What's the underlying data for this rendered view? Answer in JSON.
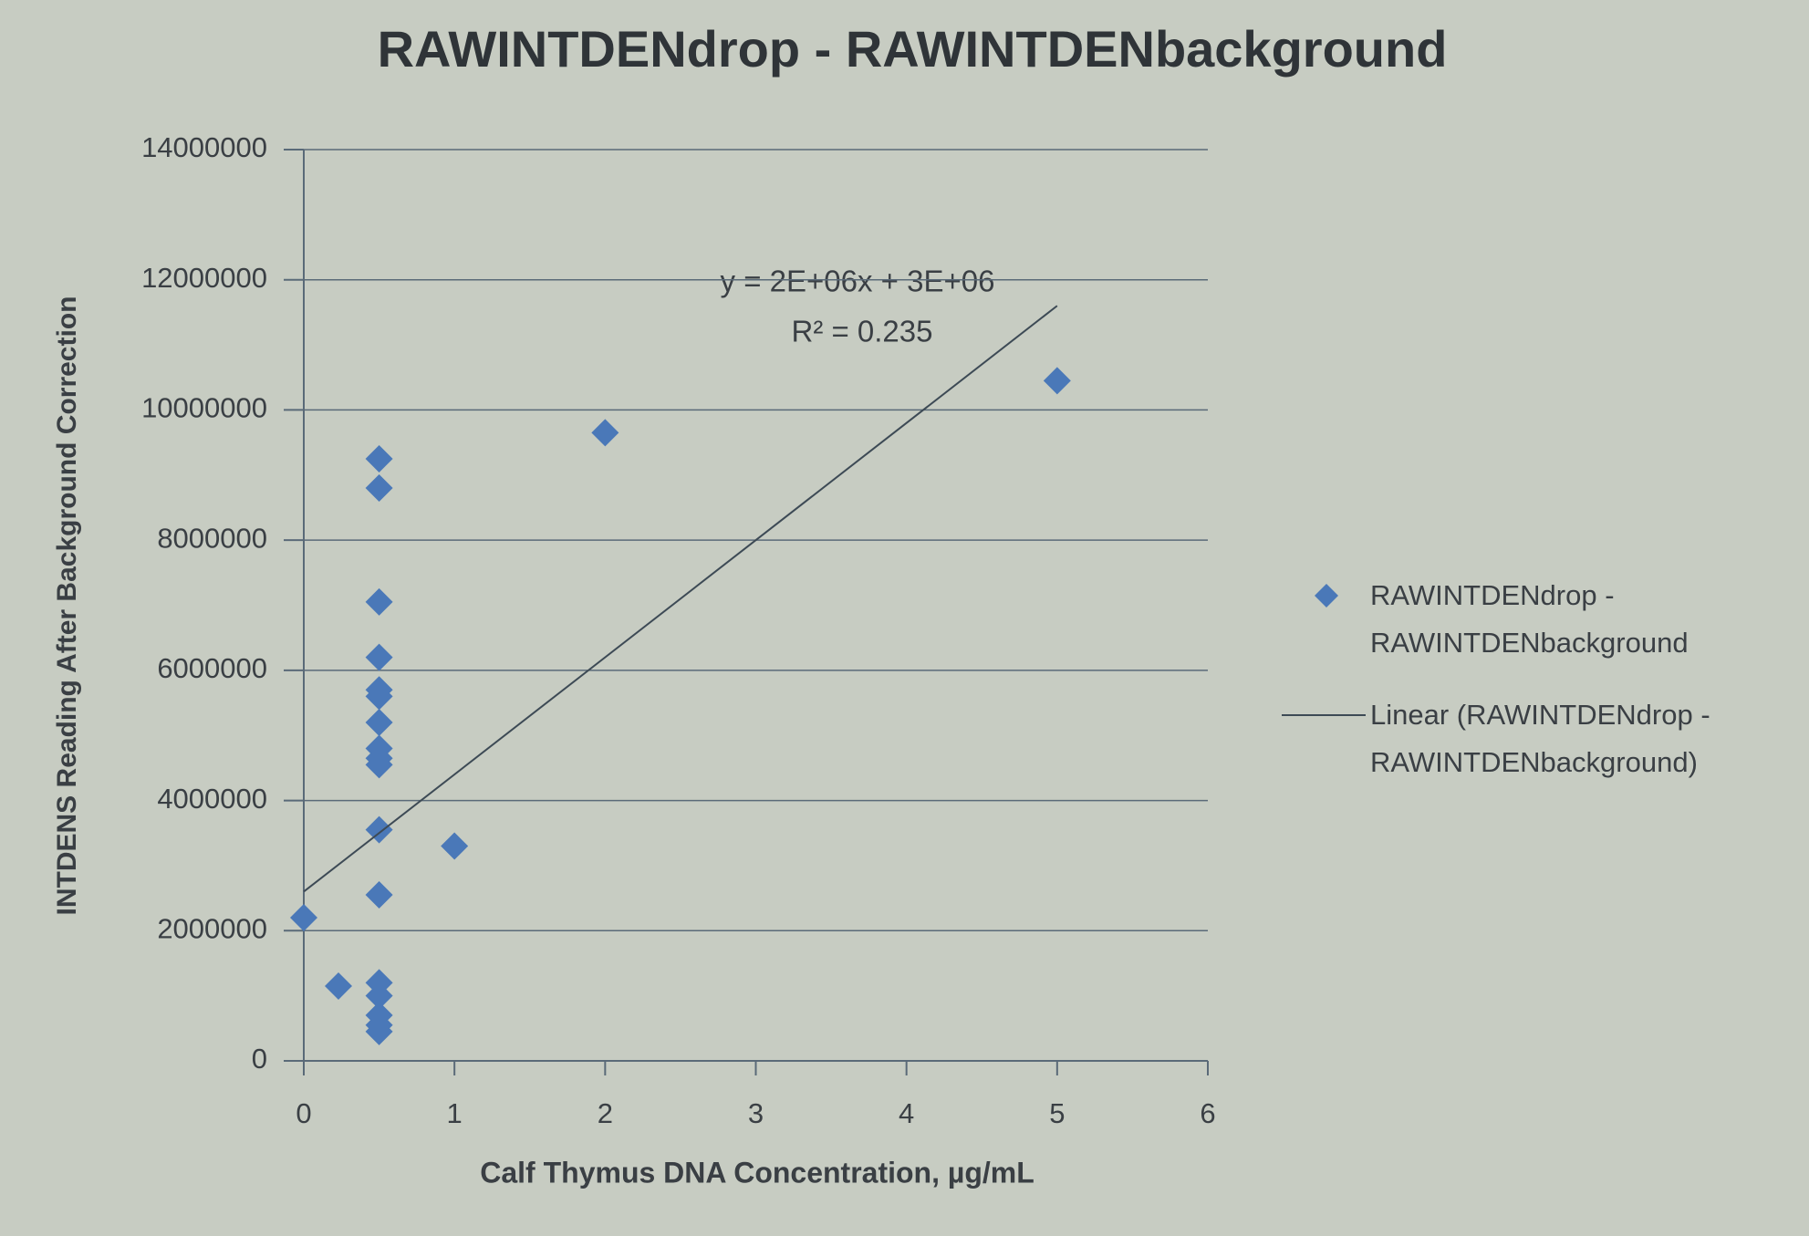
{
  "chart_data": {
    "type": "scatter",
    "title": "RAWINTDENdrop - RAWINTDENbackground",
    "x_label": "Calf Thymus DNA Concentration, µg/mL",
    "y_label": "INTDENS Reading After Background Correction",
    "xlim": [
      0,
      6
    ],
    "xticks": [
      0,
      1,
      2,
      3,
      4,
      5,
      6
    ],
    "ylim": [
      0,
      14000000
    ],
    "yticks": [
      0,
      2000000,
      4000000,
      6000000,
      8000000,
      10000000,
      12000000,
      14000000
    ],
    "grid": true,
    "legend": "right",
    "series": [
      {
        "name": "RAWINTDENdrop - RAWINTDENbackground",
        "color": "#4a78b8",
        "x": [
          0,
          0.23,
          0.5,
          0.5,
          0.5,
          0.5,
          0.5,
          0.5,
          0.5,
          0.5,
          0.5,
          0.5,
          0.5,
          0.5,
          0.5,
          0.5,
          0.5,
          0.5,
          0.5,
          1,
          2,
          5
        ],
        "values": [
          2200000,
          1150000,
          9250000,
          8800000,
          7050000,
          6200000,
          5700000,
          5600000,
          5200000,
          4800000,
          4650000,
          4550000,
          3550000,
          2550000,
          1200000,
          1000000,
          700000,
          550000,
          450000,
          3300000,
          9650000,
          10450000
        ]
      }
    ],
    "trendline": {
      "name": "Linear (RAWINTDENdrop - RAWINTDENbackground)",
      "color": "#3d4a55",
      "x": [
        0,
        5
      ],
      "values": [
        2600000,
        11600000
      ]
    },
    "annotations": [
      "y = 2E+06x + 3E+06",
      "R² = 0.235"
    ]
  }
}
